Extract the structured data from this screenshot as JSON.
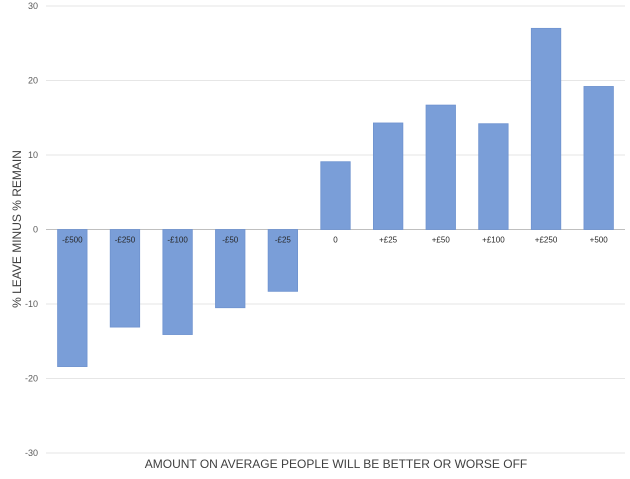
{
  "chart_data": {
    "type": "bar",
    "categories": [
      "-£500",
      "-£250",
      "-£100",
      "-£50",
      "-£25",
      "0",
      "+£25",
      "+£50",
      "+£100",
      "+£250",
      "+500"
    ],
    "values": [
      -18.4,
      -13.1,
      -14.1,
      -10.5,
      -8.3,
      9.1,
      14.3,
      16.7,
      14.2,
      27.0,
      19.2
    ],
    "xlabel": "AMOUNT ON AVERAGE PEOPLE WILL BE BETTER OR WORSE OFF",
    "ylabel": "% LEAVE MINUS % REMAIN",
    "ylim": [
      -30,
      30
    ],
    "yticks": [
      30,
      20,
      10,
      0,
      -10,
      -20,
      -30
    ],
    "grid": true,
    "legend": "none",
    "bar_color": "#7a9ed8"
  }
}
